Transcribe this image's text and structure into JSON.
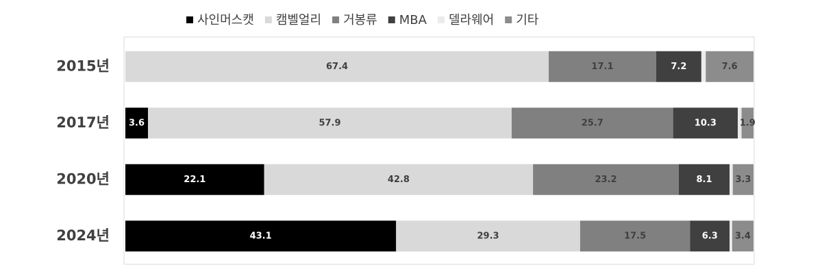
{
  "chart_data": {
    "type": "stacked_bar_horizontal",
    "categories": [
      "2015년",
      "2017년",
      "2020년",
      "2024년"
    ],
    "xlim": [
      0,
      100
    ],
    "legend": "top",
    "series": [
      {
        "name": "사인머스캣",
        "color": "#000000",
        "values": [
          0,
          3.6,
          22.1,
          43.1
        ]
      },
      {
        "name": "캠벨얼리",
        "color": "#d9d9d9",
        "values": [
          67.4,
          57.9,
          42.8,
          29.3
        ]
      },
      {
        "name": "거봉류",
        "color": "#808080",
        "values": [
          17.1,
          25.7,
          23.2,
          17.5
        ]
      },
      {
        "name": "MBA",
        "color": "#404040",
        "values": [
          7.2,
          10.3,
          8.1,
          6.3
        ]
      },
      {
        "name": "델라웨어",
        "color": "#ebebeb",
        "values": [
          0.7,
          0.6,
          0.5,
          0.4
        ],
        "show_labels": false
      },
      {
        "name": "기타",
        "color": "#8c8c8c",
        "values": [
          7.6,
          1.9,
          3.3,
          3.4
        ]
      }
    ]
  }
}
